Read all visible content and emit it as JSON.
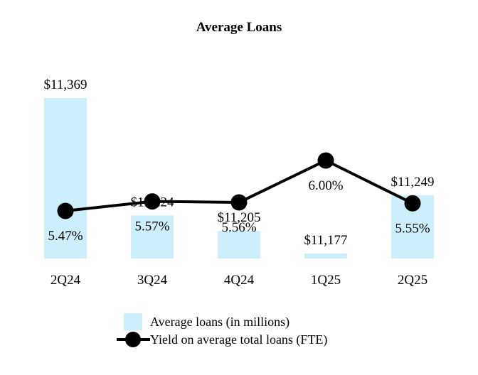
{
  "chart_data": {
    "type": "bar",
    "title": "Average Loans",
    "categories": [
      "2Q24",
      "3Q24",
      "4Q24",
      "1Q25",
      "2Q25"
    ],
    "series": [
      {
        "name": "Average loans (in millions)",
        "type": "bar",
        "values": [
          11369,
          11224,
          11205,
          11177,
          11249
        ],
        "labels": [
          "$11,369",
          "$11,224",
          "$11,205",
          "$11,177",
          "$11,249"
        ],
        "color": "#cdeefb"
      },
      {
        "name": "Yield on average total loans (FTE)",
        "type": "line",
        "values": [
          5.47,
          5.57,
          5.56,
          6.0,
          5.55
        ],
        "labels": [
          "5.47%",
          "5.57%",
          "5.56%",
          "6.00%",
          "5.55%"
        ],
        "color": "#000000"
      }
    ],
    "legend_position": "bottom-center",
    "grid": false
  }
}
